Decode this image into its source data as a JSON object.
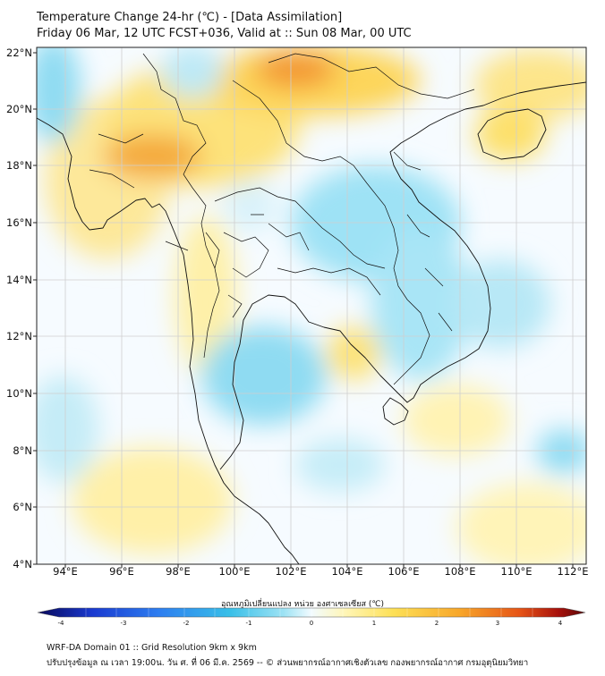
{
  "title": {
    "line1": "Temperature Change 24-hr (℃) - [Data Assimilation]",
    "line2": "Friday 06 Mar, 12 UTC FCST+036, Valid at :: Sun 08 Mar, 00 UTC"
  },
  "map": {
    "lat_labels": [
      "22°N",
      "20°N",
      "18°N",
      "16°N",
      "14°N",
      "12°N",
      "10°N",
      "8°N",
      "6°N",
      "4°N"
    ],
    "lon_labels": [
      "94°E",
      "96°E",
      "98°E",
      "100°E",
      "102°E",
      "104°E",
      "106°E",
      "108°E",
      "110°E",
      "112°E"
    ],
    "colors": {
      "warm_peak": "#f08a22",
      "warm": "#fbd24a",
      "light_warm": "#fff4b0",
      "neutral": "#f6fbff",
      "light_cool": "#bfe9f6",
      "cool": "#6fd3ef",
      "border": "#111111",
      "grid": "#cccccc"
    },
    "hotspots": [
      {
        "name": "shan-myanmar",
        "sign": "warm",
        "intensity": 1.6
      },
      {
        "name": "north-laos",
        "sign": "warm",
        "intensity": 2.1
      },
      {
        "name": "hainan",
        "sign": "warm",
        "intensity": 0.9
      },
      {
        "name": "west-myanmar",
        "sign": "warm",
        "intensity": 0.9
      },
      {
        "name": "northeast-thailand",
        "sign": "cool",
        "intensity": -1.0
      },
      {
        "name": "gulf-of-thailand",
        "sign": "cool",
        "intensity": -1.1
      },
      {
        "name": "cambodia-coast",
        "sign": "warm",
        "intensity": 0.8
      },
      {
        "name": "south-china-sea",
        "sign": "cool",
        "intensity": -0.8
      }
    ]
  },
  "colorbar": {
    "label": "อุณหภูมิเปลี่ยนแปลง หน่วย องศาเซลเซียส (℃)",
    "ticks": [
      "-4",
      "-3",
      "-2",
      "-1",
      "0",
      "1",
      "2",
      "3",
      "4"
    ],
    "colors": [
      "#08085a",
      "#1a3ad0",
      "#2d7df0",
      "#38bfe8",
      "#9ee3f4",
      "#f2fbff",
      "#fff6b8",
      "#fde056",
      "#f8a72a",
      "#e65416",
      "#a8110c",
      "#5a0606"
    ]
  },
  "footer": {
    "line1": "WRF-DA Domain 01 :: Grid Resolution 9km x 9km",
    "line2": "ปรับปรุงข้อมูล ณ เวลา 19:00น. วัน ศ. ที่ 06 มี.ค. 2569 -- © ส่วนพยากรณ์อากาศเชิงตัวเลข กองพยากรณ์อากาศ กรมอุตุนิยมวิทยา"
  }
}
